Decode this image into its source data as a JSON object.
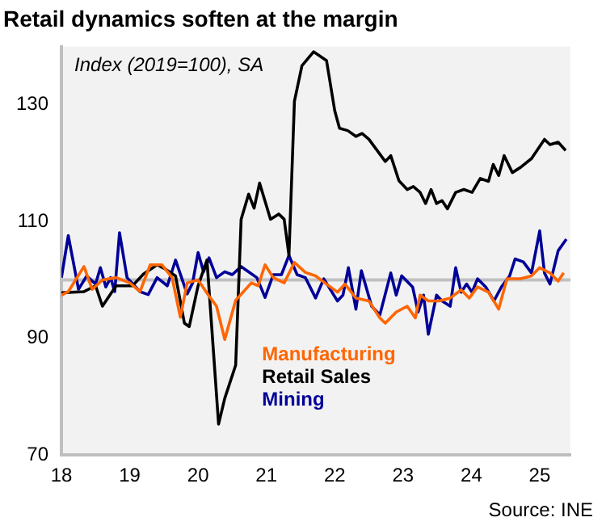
{
  "chart_data": {
    "type": "line",
    "title": "Retail dynamics soften at the margin",
    "annotations": [
      "Index (2019=100), SA",
      "Source: INE"
    ],
    "xlim": [
      2018,
      2025.45
    ],
    "xticks": [
      {
        "value": 2018,
        "label": "18"
      },
      {
        "value": 2019,
        "label": "19"
      },
      {
        "value": 2020,
        "label": "20"
      },
      {
        "value": 2021,
        "label": "21"
      },
      {
        "value": 2022,
        "label": "22"
      },
      {
        "value": 2023,
        "label": "23"
      },
      {
        "value": 2024,
        "label": "24"
      },
      {
        "value": 2025,
        "label": "25"
      }
    ],
    "ylim": [
      70,
      140
    ],
    "yticks": [
      70,
      90,
      110,
      130
    ],
    "grid": false,
    "legend": "bottom",
    "ref_lines": [
      {
        "axis": "y",
        "value": 100,
        "color": "#c0c0c0"
      }
    ],
    "series": [
      {
        "name": "Manufacturing",
        "color": "#ff6600",
        "x": [
          2018.0,
          2018.1,
          2018.33,
          2018.45,
          2018.6,
          2018.8,
          2019.0,
          2019.15,
          2019.3,
          2019.47,
          2019.62,
          2019.74,
          2019.84,
          2020.0,
          2020.15,
          2020.27,
          2020.39,
          2020.55,
          2020.78,
          2020.88,
          2020.98,
          2021.1,
          2021.26,
          2021.41,
          2021.57,
          2021.72,
          2021.88,
          2022.04,
          2022.15,
          2022.31,
          2022.5,
          2022.66,
          2022.74,
          2022.9,
          2023.06,
          2023.18,
          2023.25,
          2023.37,
          2023.53,
          2023.69,
          2023.85,
          2023.97,
          2024.09,
          2024.25,
          2024.4,
          2024.52,
          2024.72,
          2024.88,
          2025.0,
          2025.15,
          2025.27,
          2025.35
        ],
        "values": [
          97.4,
          98,
          102.3,
          98.4,
          100,
          100.4,
          99.5,
          98,
          102.6,
          102.6,
          100.4,
          93.6,
          99.5,
          100,
          97.4,
          95.5,
          89.8,
          96.5,
          99.5,
          99,
          102.6,
          100.4,
          99.5,
          103,
          101.3,
          100.7,
          99.3,
          97.9,
          99.3,
          96.9,
          96.4,
          93.5,
          92.6,
          94.5,
          95.5,
          93.5,
          97.4,
          96.4,
          96.4,
          96.9,
          98.3,
          96.9,
          98.8,
          97.9,
          95,
          100.2,
          100.2,
          100.7,
          102.1,
          101.2,
          99.8,
          101.2
        ]
      },
      {
        "name": "Retail Sales",
        "color": "#000000",
        "x": [
          2018.0,
          2018.33,
          2018.5,
          2018.6,
          2018.8,
          2019.04,
          2019.2,
          2019.4,
          2019.5,
          2019.67,
          2019.8,
          2019.87,
          2020.0,
          2020.13,
          2020.3,
          2020.39,
          2020.55,
          2020.63,
          2020.74,
          2020.82,
          2020.9,
          2021.06,
          2021.18,
          2021.26,
          2021.33,
          2021.41,
          2021.52,
          2021.69,
          2021.88,
          2022.0,
          2022.07,
          2022.19,
          2022.31,
          2022.4,
          2022.5,
          2022.62,
          2022.74,
          2022.82,
          2022.94,
          2023.06,
          2023.15,
          2023.25,
          2023.33,
          2023.41,
          2023.49,
          2023.57,
          2023.65,
          2023.77,
          2023.89,
          2024.01,
          2024.13,
          2024.25,
          2024.32,
          2024.4,
          2024.48,
          2024.6,
          2024.72,
          2024.88,
          2025.07,
          2025.15,
          2025.27,
          2025.38
        ],
        "values": [
          97.8,
          98,
          99,
          95.5,
          99,
          99,
          101,
          102.6,
          102,
          100.7,
          92.6,
          92,
          99,
          103.4,
          75.3,
          79.7,
          85.4,
          110.4,
          114.7,
          112.3,
          116.6,
          110.4,
          111.3,
          110.4,
          104.2,
          130.6,
          136.7,
          139.1,
          137.6,
          129,
          126,
          125.6,
          124.6,
          125.1,
          124.1,
          122.2,
          120.3,
          121.3,
          117,
          115.5,
          116,
          115,
          113.1,
          115.5,
          113.1,
          113.6,
          112.2,
          115,
          115.5,
          115,
          117.4,
          116.9,
          119.8,
          117.9,
          121.3,
          118.4,
          119.3,
          120.8,
          124.1,
          123.2,
          123.6,
          122.2
        ]
      },
      {
        "name": "Mining",
        "color": "#000099",
        "x": [
          2018.0,
          2018.1,
          2018.25,
          2018.37,
          2018.5,
          2018.57,
          2018.65,
          2018.72,
          2018.78,
          2018.85,
          2018.96,
          2019.15,
          2019.27,
          2019.4,
          2019.55,
          2019.67,
          2019.84,
          2019.92,
          2020.0,
          2020.08,
          2020.16,
          2020.27,
          2020.39,
          2020.5,
          2020.63,
          2020.74,
          2020.86,
          2020.98,
          2021.1,
          2021.22,
          2021.33,
          2021.45,
          2021.57,
          2021.72,
          2021.84,
          2022.04,
          2022.12,
          2022.2,
          2022.31,
          2022.39,
          2022.54,
          2022.66,
          2022.82,
          2022.9,
          2022.98,
          2023.14,
          2023.22,
          2023.3,
          2023.37,
          2023.49,
          2023.57,
          2023.69,
          2023.77,
          2023.85,
          2023.93,
          2024.01,
          2024.09,
          2024.21,
          2024.33,
          2024.44,
          2024.56,
          2024.64,
          2024.76,
          2024.88,
          2025.0,
          2025.07,
          2025.15,
          2025.27,
          2025.39
        ],
        "values": [
          100.4,
          107.6,
          98.4,
          100.7,
          99.3,
          102.1,
          98.8,
          100.4,
          98,
          108.1,
          100.4,
          98,
          97.5,
          100.4,
          99,
          103.4,
          97.6,
          99.5,
          104.7,
          101.4,
          103.8,
          100.4,
          101.4,
          100.9,
          102.3,
          101.4,
          100.4,
          97,
          100.9,
          100.9,
          104.2,
          100.9,
          100.4,
          96.9,
          100.2,
          96.4,
          97.4,
          102.1,
          95,
          101.6,
          95.5,
          94,
          101.2,
          97.4,
          100.7,
          98.8,
          94.5,
          97.4,
          90.7,
          97.4,
          96.4,
          95.5,
          102.1,
          97.9,
          99.3,
          97.9,
          100.2,
          98.8,
          96.4,
          98.8,
          100.7,
          103.6,
          103.1,
          101.2,
          108.4,
          101.2,
          99.3,
          105,
          107
        ]
      }
    ]
  }
}
